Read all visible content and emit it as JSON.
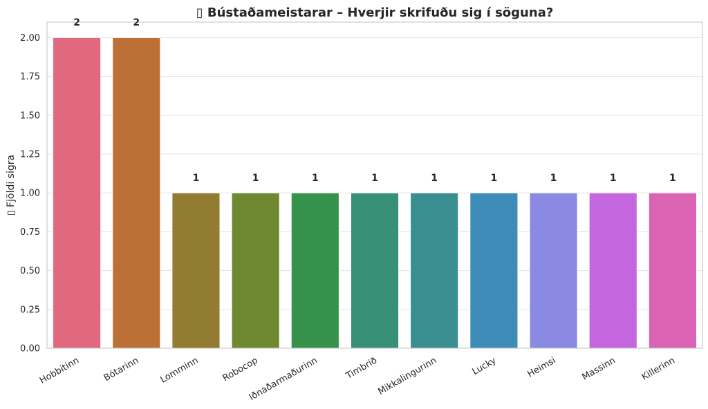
{
  "chart_data": {
    "type": "bar",
    "title": "▯ Bústaðameistarar – Hverjir skrifuðu sig í söguna?",
    "xlabel": "",
    "ylabel": "▯ Fjöldi sigra",
    "categories": [
      "Hobbitinn",
      "Bótarinn",
      "Lomminn",
      "Robocop",
      "Iðnaðarmaðurinn",
      "Timbrið",
      "Mikkalingurinn",
      "Lucky",
      "Heimsi",
      "Massinn",
      "Killerinn"
    ],
    "values": [
      2,
      2,
      1,
      1,
      1,
      1,
      1,
      1,
      1,
      1,
      1
    ],
    "data_labels": [
      "2",
      "2",
      "1",
      "1",
      "1",
      "1",
      "1",
      "1",
      "1",
      "1",
      "1"
    ],
    "colors": [
      "#e0697f",
      "#bd7035",
      "#917c31",
      "#6f8832",
      "#36924a",
      "#389077",
      "#398e8f",
      "#3d8db8",
      "#8a8ae2",
      "#c467df",
      "#db63b3"
    ],
    "yticks": [
      "0.00",
      "0.25",
      "0.50",
      "0.75",
      "1.00",
      "1.25",
      "1.50",
      "1.75",
      "2.00"
    ],
    "ylim": [
      0,
      2.1
    ],
    "grid": true,
    "legend": "none"
  }
}
